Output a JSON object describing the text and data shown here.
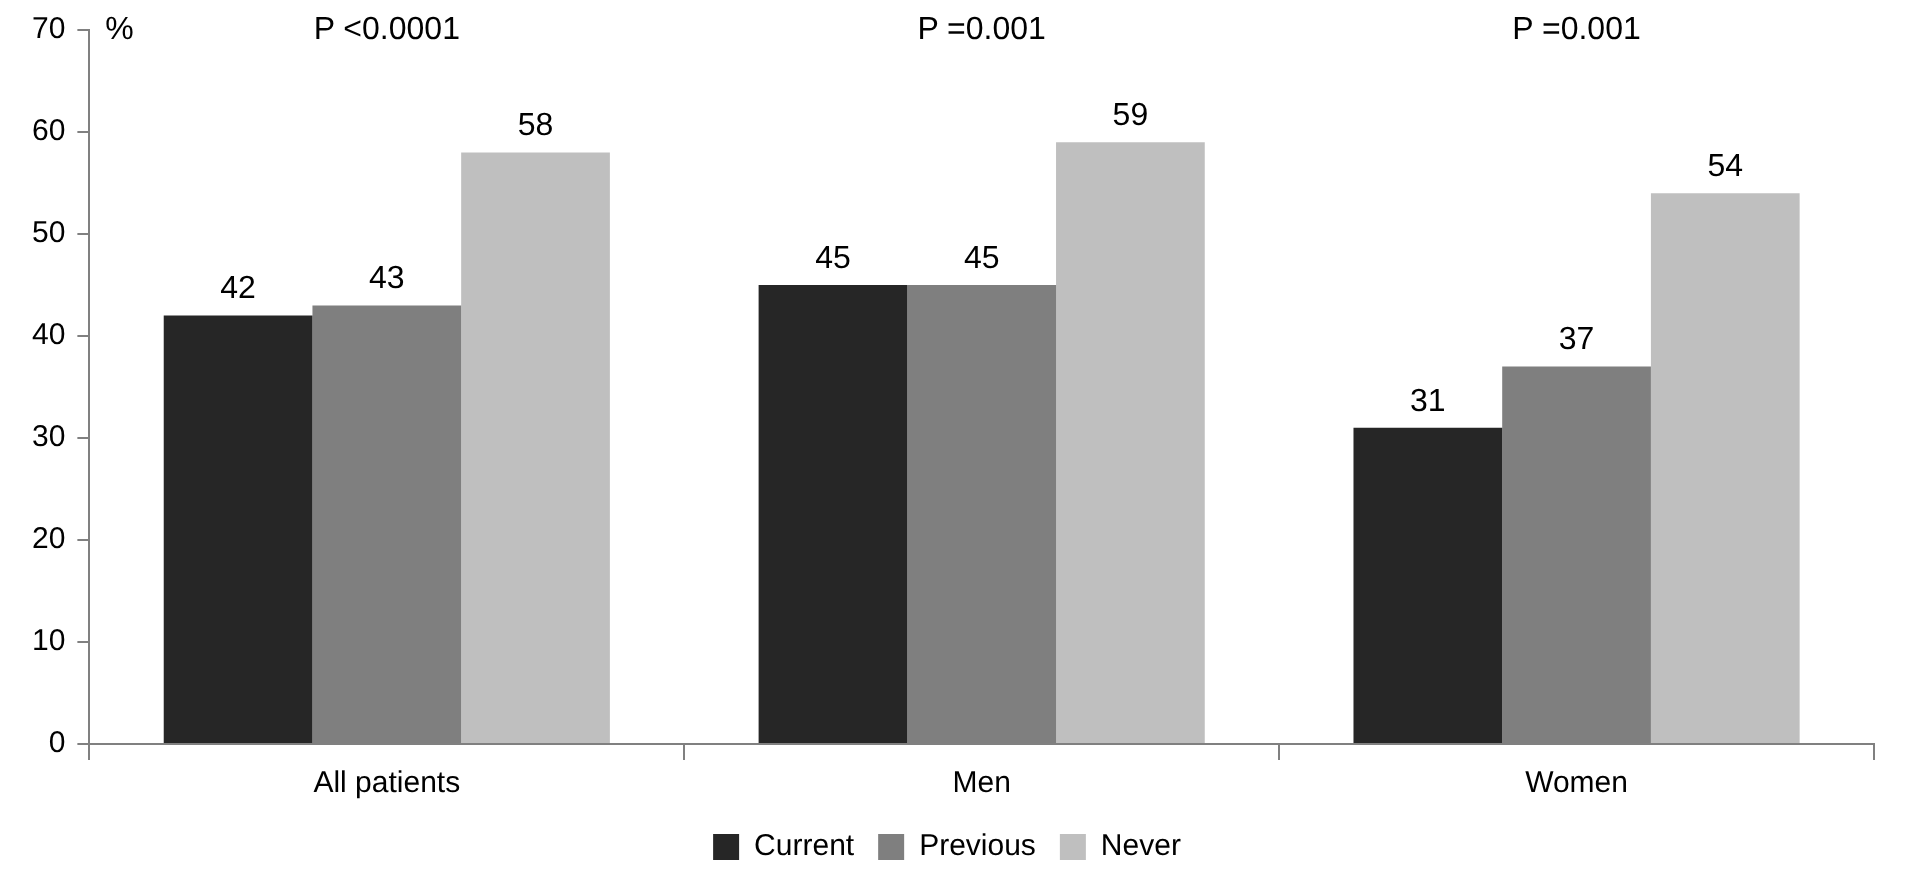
{
  "chart_data": {
    "type": "bar",
    "ylabel": "%",
    "categories": [
      "All patients",
      "Men",
      "Women"
    ],
    "series": [
      {
        "name": "Current",
        "color": "#262626",
        "values": [
          42,
          45,
          31
        ]
      },
      {
        "name": "Previous",
        "color": "#7f7f7f",
        "values": [
          43,
          45,
          37
        ]
      },
      {
        "name": "Never",
        "color": "#bfbfbf",
        "values": [
          58,
          59,
          54
        ]
      }
    ],
    "ylim": [
      0,
      70
    ],
    "yticks": [
      0,
      10,
      20,
      30,
      40,
      50,
      60,
      70
    ],
    "grid": false,
    "legend": "bottom",
    "data_labels": true,
    "annotations": [
      "P <0.0001",
      "P =0.001",
      "P =0.001"
    ]
  }
}
